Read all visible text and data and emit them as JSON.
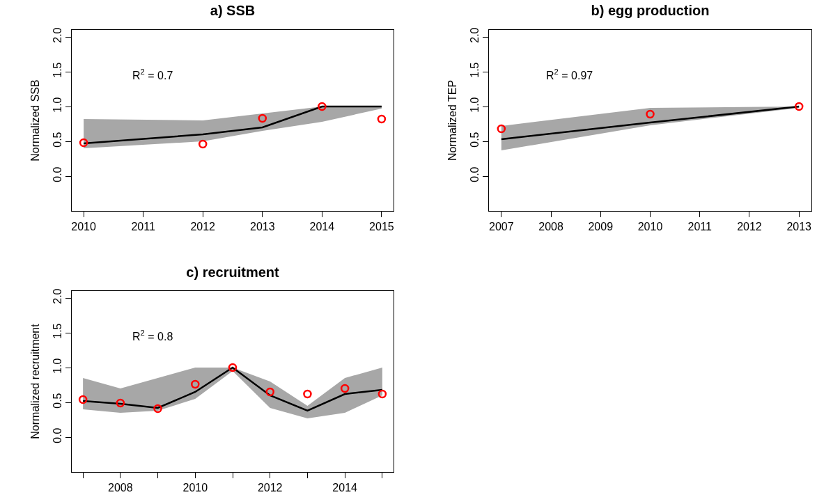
{
  "chart_data": [
    {
      "type": "line",
      "title": "a) SSB",
      "ylabel": "Normalized SSB",
      "annotations": [
        "R$^{2}$ = 0.7"
      ],
      "x": [
        2010,
        2012,
        2013,
        2014,
        2015
      ],
      "series": [
        {
          "color": "#000000",
          "values": [
            0.47,
            0.6,
            0.7,
            1.0,
            1.0
          ],
          "lower": [
            0.4,
            0.5,
            0.65,
            0.78,
            0.97
          ],
          "upper": [
            0.82,
            0.8,
            0.9,
            1.0,
            1.0
          ]
        },
        {
          "type": "scatter",
          "color": "#ff0000",
          "marker": "circle",
          "values": [
            0.48,
            0.46,
            0.83,
            1.0,
            0.82
          ]
        }
      ],
      "xlim": [
        2009.8,
        2015.2
      ],
      "xticks": [
        2010,
        2011,
        2012,
        2013,
        2014,
        2015
      ],
      "ylim": [
        -0.5,
        2.1
      ],
      "yticks": [
        {
          "value": 0,
          "label": "0.0"
        },
        {
          "value": 0.5,
          "label": "0.5"
        },
        {
          "value": 1,
          "label": "1.0"
        },
        {
          "value": 1.5,
          "label": "1.5"
        },
        {
          "value": 2,
          "label": "2.0"
        }
      ],
      "grid": false
    },
    {
      "type": "line",
      "title": "b) egg production",
      "ylabel": "Normalized TEP",
      "annotations": [
        "R$^{2}$ = 0.97"
      ],
      "x": [
        2007,
        2010,
        2013
      ],
      "series": [
        {
          "color": "#000000",
          "values": [
            0.53,
            0.77,
            1.0
          ],
          "lower": [
            0.37,
            0.73,
            0.98
          ],
          "upper": [
            0.72,
            0.98,
            1.0
          ]
        },
        {
          "type": "scatter",
          "color": "#ff0000",
          "marker": "circle",
          "values": [
            0.68,
            0.89,
            1.0
          ]
        }
      ],
      "xlim": [
        2006.75,
        2013.25
      ],
      "xticks": [
        2007,
        2008,
        2009,
        2010,
        2011,
        2012,
        2013
      ],
      "ylim": [
        -0.5,
        2.1
      ],
      "yticks": [
        {
          "value": 0,
          "label": "0.0"
        },
        {
          "value": 0.5,
          "label": "0.5"
        },
        {
          "value": 1,
          "label": "1.0"
        },
        {
          "value": 1.5,
          "label": "1.5"
        },
        {
          "value": 2,
          "label": "2.0"
        }
      ],
      "grid": false
    },
    {
      "type": "line",
      "title": "c) recruitment",
      "ylabel": "Normalized recruitment",
      "annotations": [
        "R$^{2}$ = 0.8"
      ],
      "x": [
        2007,
        2008,
        2009,
        2010,
        2011,
        2012,
        2013,
        2014,
        2015
      ],
      "series": [
        {
          "color": "#000000",
          "values": [
            0.52,
            0.48,
            0.42,
            0.65,
            1.0,
            0.6,
            0.38,
            0.62,
            0.68
          ],
          "lower": [
            0.4,
            0.35,
            0.38,
            0.55,
            0.95,
            0.42,
            0.27,
            0.35,
            0.6
          ],
          "upper": [
            0.85,
            0.7,
            0.85,
            1.0,
            1.0,
            0.8,
            0.45,
            0.85,
            1.0
          ]
        },
        {
          "type": "scatter",
          "color": "#ff0000",
          "marker": "circle",
          "values": [
            0.54,
            0.49,
            0.41,
            0.76,
            1.0,
            0.65,
            0.62,
            0.7,
            0.62
          ]
        }
      ],
      "xlim": [
        2006.7,
        2015.3
      ],
      "xticks": [
        {
          "value": 2007,
          "label": null
        },
        2008,
        {
          "value": 2009,
          "label": null
        },
        2010,
        {
          "value": 2011,
          "label": null
        },
        2012,
        {
          "value": 2013,
          "label": null
        },
        2014,
        {
          "value": 2015,
          "label": null
        }
      ],
      "ylim": [
        -0.5,
        2.1
      ],
      "yticks": [
        {
          "value": 0,
          "label": "0.0"
        },
        {
          "value": 0.5,
          "label": "0.5"
        },
        {
          "value": 1,
          "label": "1.0"
        },
        {
          "value": 1.5,
          "label": "1.5"
        },
        {
          "value": 2,
          "label": "2.0"
        }
      ],
      "grid": false
    }
  ]
}
